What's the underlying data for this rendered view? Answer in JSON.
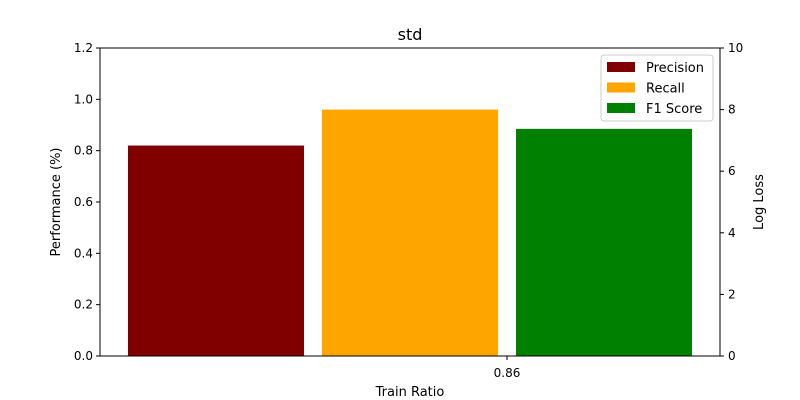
{
  "chart_data": {
    "type": "bar",
    "title": "std",
    "xlabel": "Train Ratio",
    "ylabel": "Performance (%)",
    "y2label": "Log Loss",
    "y2label_color": "#800080",
    "categories": [
      "0.86"
    ],
    "series": [
      {
        "name": "Precision",
        "values": [
          0.82
        ],
        "color": "#800000"
      },
      {
        "name": "Recall",
        "values": [
          0.96
        ],
        "color": "#FFA500"
      },
      {
        "name": "F1 Score",
        "values": [
          0.885
        ],
        "color": "#008000"
      }
    ],
    "ylim": [
      0,
      1.2
    ],
    "yticks": [
      "0.0",
      "0.2",
      "0.4",
      "0.6",
      "0.8",
      "1.0",
      "1.2"
    ],
    "y2lim": [
      0,
      10
    ],
    "y2ticks": [
      "0",
      "2",
      "4",
      "6",
      "8",
      "10"
    ],
    "legend": "top-right",
    "grid": false
  }
}
